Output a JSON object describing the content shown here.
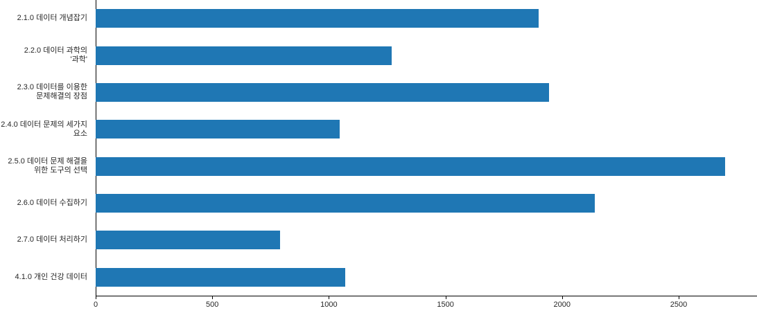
{
  "chart_data": {
    "type": "bar",
    "orientation": "horizontal",
    "title": "",
    "xlabel": "",
    "ylabel": "",
    "categories": [
      "2.1.0 데이터 개념잡기",
      "2.2.0 데이터 과학의\n'과학'",
      "2.3.0 데이터를 이용한\n문제해결의 장점",
      "2.4.0 데이터 문제의 세가지\n요소",
      "2.5.0 데이터 문제 해결을\n위한 도구의 선택",
      "2.6.0 데이터 수집하기",
      "2.7.0 데이터 처리하기",
      "4.1.0 개인 건강 데이터"
    ],
    "values": [
      1900,
      1270,
      1945,
      1045,
      2700,
      2140,
      790,
      1070
    ],
    "x_ticks": [
      0,
      500,
      1000,
      1500,
      2000,
      2500
    ],
    "xlim": [
      0,
      2833
    ],
    "bar_color": "#1f77b4",
    "grid": false,
    "legend": null
  }
}
